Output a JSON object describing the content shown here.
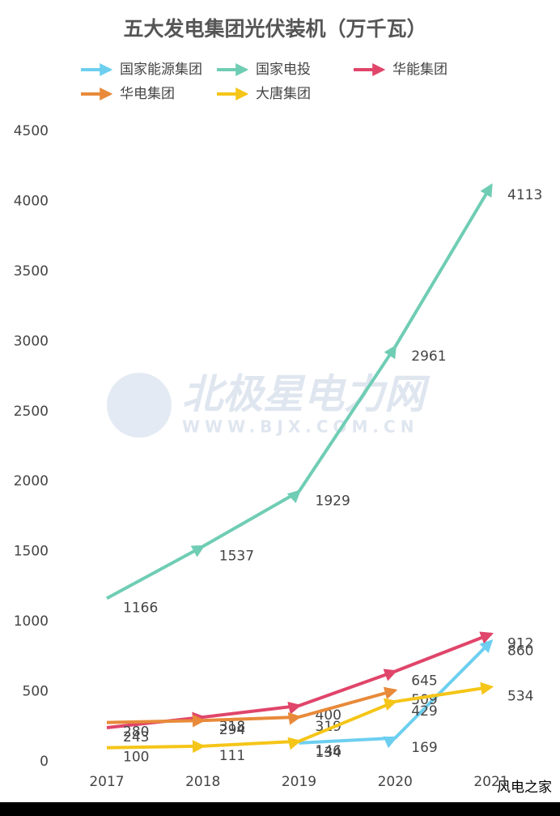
{
  "chart_data": {
    "type": "line",
    "title": "五大发电集团光伏装机（万千瓦）",
    "watermark": "北极星电力网",
    "watermark_url": "WWW.BJX.COM.CN",
    "footer": "风电之家",
    "categories": [
      "2017",
      "2018",
      "2019",
      "2020",
      "2021"
    ],
    "series": [
      {
        "name": "国家能源集团",
        "color": "#6dcff0",
        "values": [
          null,
          null,
          134,
          169,
          860
        ]
      },
      {
        "name": "国家电投",
        "color": "#6fcdb4",
        "values": [
          1166,
          1537,
          1929,
          2961,
          4113
        ]
      },
      {
        "name": "华能集团",
        "color": "#e0456a",
        "values": [
          243,
          318,
          400,
          645,
          912
        ]
      },
      {
        "name": "华电集团",
        "color": "#e88a3a",
        "values": [
          280,
          294,
          319,
          509,
          null
        ]
      },
      {
        "name": "大唐集团",
        "color": "#f5c518",
        "values": [
          100,
          111,
          146,
          429,
          534
        ]
      }
    ],
    "ylim": [
      0,
      4500
    ],
    "yticks": [
      0,
      500,
      1000,
      1500,
      2000,
      2500,
      3000,
      3500,
      4000,
      4500
    ],
    "grid": false
  }
}
